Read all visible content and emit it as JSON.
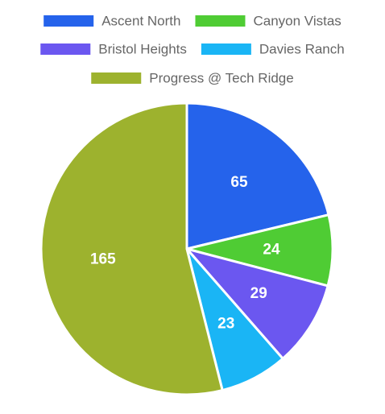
{
  "chart_data": {
    "type": "pie",
    "categories": [
      "Ascent North",
      "Canyon Vistas",
      "Bristol Heights",
      "Davies Ranch",
      "Progress @ Tech Ridge"
    ],
    "values": [
      65,
      24,
      29,
      23,
      165
    ],
    "colors": [
      "#2563eb",
      "#4fcc34",
      "#6b57f0",
      "#1ab5f5",
      "#9db22e"
    ],
    "legend_position": "top",
    "show_data_labels": true
  }
}
